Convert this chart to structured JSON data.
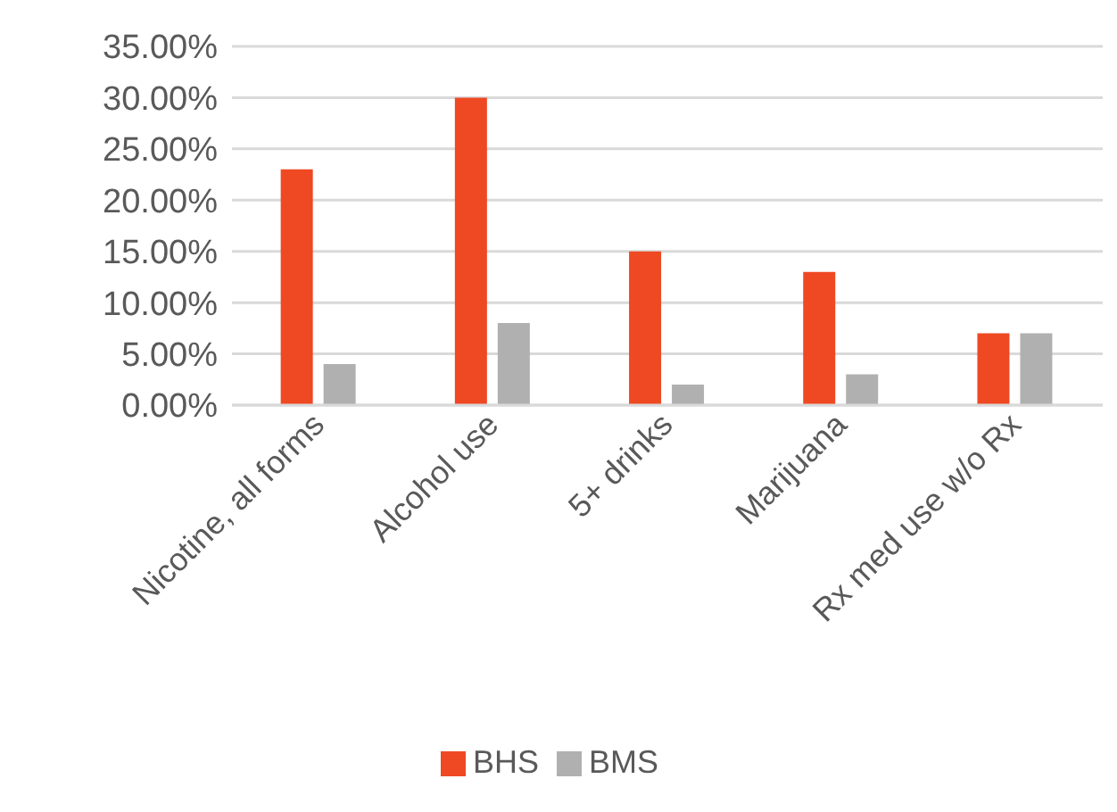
{
  "chart_data": {
    "type": "bar",
    "categories": [
      "Nicotine, all forms",
      "Alcohol use",
      "5+ drinks",
      "Marijuana",
      "Rx med use w/o Rx"
    ],
    "series": [
      {
        "name": "BHS",
        "color": "#ee4923",
        "values": [
          23,
          30,
          15,
          13,
          7
        ]
      },
      {
        "name": "BMS",
        "color": "#b0b0b0",
        "values": [
          4,
          8,
          2,
          3,
          7
        ]
      }
    ],
    "ylim": [
      0,
      35
    ],
    "yticks": [
      {
        "value": 0,
        "label": "0.00%"
      },
      {
        "value": 5,
        "label": "5.00%"
      },
      {
        "value": 10,
        "label": "10.00%"
      },
      {
        "value": 15,
        "label": "15.00%"
      },
      {
        "value": 20,
        "label": "20.00%"
      },
      {
        "value": 25,
        "label": "25.00%"
      },
      {
        "value": 30,
        "label": "30.00%"
      },
      {
        "value": 35,
        "label": "35.00%"
      }
    ],
    "grid": "y",
    "legend": "bottom"
  }
}
